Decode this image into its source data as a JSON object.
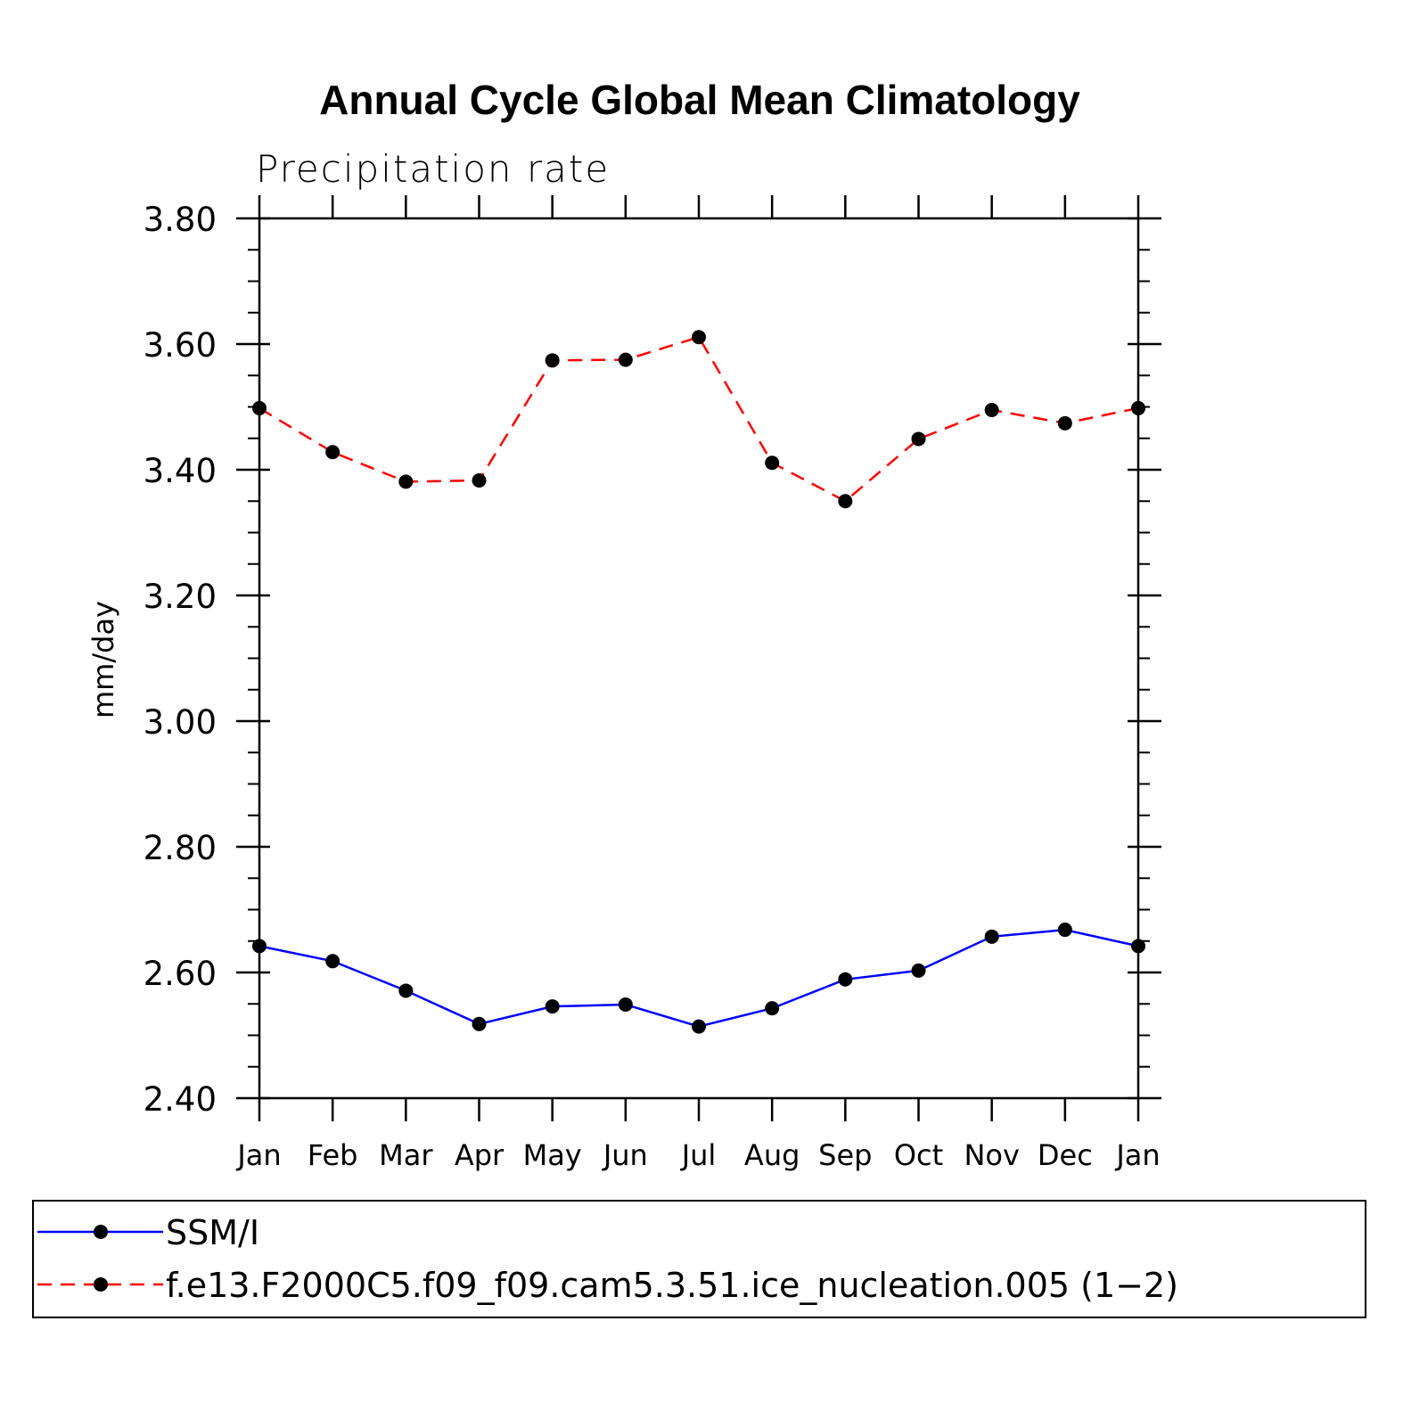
{
  "chart_data": {
    "type": "line",
    "title": "Annual Cycle Global Mean Climatology",
    "subtitle": "Precipitation rate",
    "xlabel": "",
    "ylabel": "mm/day",
    "categories": [
      "Jan",
      "Feb",
      "Mar",
      "Apr",
      "May",
      "Jun",
      "Jul",
      "Aug",
      "Sep",
      "Oct",
      "Nov",
      "Dec",
      "Jan"
    ],
    "ylim": [
      2.4,
      3.8
    ],
    "yticks": [
      "2.40",
      "2.60",
      "2.80",
      "3.00",
      "3.20",
      "3.40",
      "3.60",
      "3.80"
    ],
    "yminor_step": 0.05,
    "grid": false,
    "legend_position": "bottom",
    "series": [
      {
        "name": "SSM/I",
        "color": "#0000ff",
        "line_style": "solid",
        "marker": "filled-circle",
        "values": [
          2.642,
          2.618,
          2.571,
          2.518,
          2.546,
          2.549,
          2.514,
          2.543,
          2.589,
          2.603,
          2.657,
          2.668,
          2.642
        ]
      },
      {
        "name": "f.e13.F2000C5.f09_f09.cam5.3.51.ice_nucleation.005 (1−2)",
        "color": "#ff0000",
        "line_style": "dashed",
        "marker": "filled-circle",
        "values": [
          3.498,
          3.428,
          3.381,
          3.383,
          3.574,
          3.575,
          3.611,
          3.411,
          3.35,
          3.449,
          3.495,
          3.474,
          3.498
        ]
      }
    ]
  }
}
